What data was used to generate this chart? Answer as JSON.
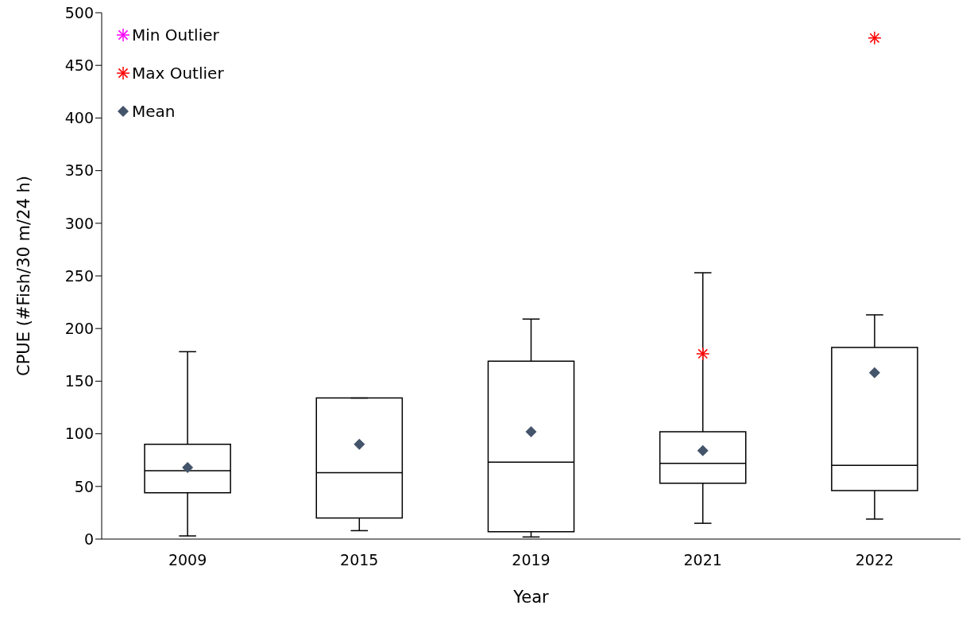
{
  "chart_data": {
    "type": "box",
    "xlabel": "Year",
    "ylabel": "CPUE (#Fish/30 m/24 h)",
    "categories": [
      "2009",
      "2015",
      "2019",
      "2021",
      "2022"
    ],
    "boxes": [
      {
        "low": 3,
        "q1": 44,
        "median": 65,
        "q3": 90,
        "high": 178
      },
      {
        "low": 8,
        "q1": 20,
        "median": 63,
        "q3": 134,
        "high": 134
      },
      {
        "low": 2,
        "q1": 7,
        "median": 73,
        "q3": 169,
        "high": 209
      },
      {
        "low": 15,
        "q1": 53,
        "median": 72,
        "q3": 102,
        "high": 253
      },
      {
        "low": 19,
        "q1": 46,
        "median": 70,
        "q3": 182,
        "high": 213
      }
    ],
    "series": [
      {
        "name": "Min Outlier",
        "type": "scatter",
        "marker": "cross",
        "color": "#ff00ff",
        "values": [
          null,
          null,
          null,
          null,
          null
        ]
      },
      {
        "name": "Max Outlier",
        "type": "scatter",
        "marker": "cross",
        "color": "#ff0000",
        "values": [
          null,
          null,
          null,
          176,
          476
        ]
      },
      {
        "name": "Mean",
        "type": "scatter",
        "marker": "diamond",
        "color": "#44546a",
        "values": [
          68,
          90,
          102,
          84,
          158
        ]
      }
    ],
    "ylim": [
      0,
      500
    ],
    "yticks": [
      0,
      50,
      100,
      150,
      200,
      250,
      300,
      350,
      400,
      450,
      500
    ],
    "grid": false,
    "legend": "top left"
  }
}
